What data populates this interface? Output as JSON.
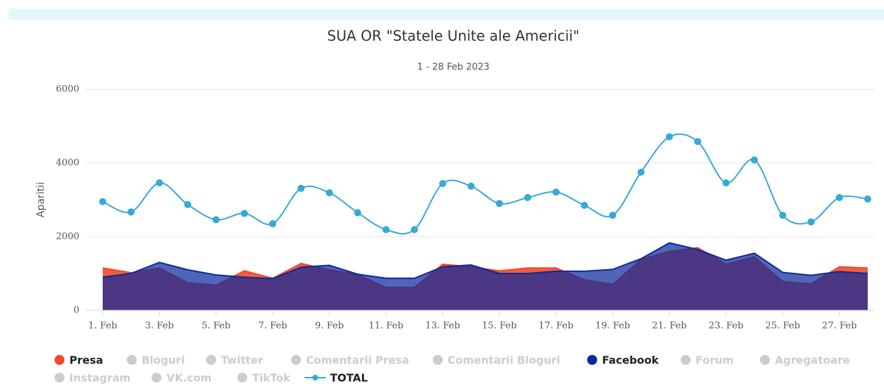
{
  "chart_data": {
    "type": "area",
    "title": "SUA OR \"Statele Unite ale Americii\"",
    "subtitle": "1 - 28 Feb 2023",
    "y_label": "Aparitii",
    "ylim": [
      0,
      6000
    ],
    "yticks": [
      0,
      2000,
      4000,
      6000
    ],
    "grid": true,
    "categories": [
      "1. Feb",
      null,
      "3. Feb",
      null,
      "5. Feb",
      null,
      "7. Feb",
      null,
      "9. Feb",
      null,
      "11. Feb",
      null,
      "13. Feb",
      null,
      "15. Feb",
      null,
      "17. Feb",
      null,
      "19. Feb",
      null,
      "21. Feb",
      null,
      "23. Feb",
      null,
      "25. Feb",
      null,
      "27. Feb",
      null
    ],
    "series": [
      {
        "name": "Presa",
        "type": "area",
        "visible": true,
        "color": "#ef4a2c",
        "values": [
          1150,
          1020,
          1150,
          750,
          680,
          1070,
          870,
          1270,
          1100,
          970,
          620,
          620,
          1250,
          1180,
          1070,
          1150,
          1150,
          830,
          700,
          1380,
          1600,
          1700,
          1250,
          1450,
          780,
          720,
          1180,
          1150
        ]
      },
      {
        "name": "Bloguri",
        "visible": false
      },
      {
        "name": "Twitter",
        "visible": false
      },
      {
        "name": "Comentarii Presa",
        "visible": false
      },
      {
        "name": "Comentarii Bloguri",
        "visible": false
      },
      {
        "name": "Facebook",
        "type": "area",
        "visible": true,
        "color": "#0b2a9c",
        "values": [
          900,
          1000,
          1300,
          1100,
          960,
          900,
          860,
          1170,
          1220,
          980,
          870,
          870,
          1180,
          1230,
          1000,
          1000,
          1060,
          1060,
          1110,
          1400,
          1830,
          1650,
          1360,
          1550,
          1030,
          950,
          1050,
          1000
        ]
      },
      {
        "name": "Forum",
        "visible": false
      },
      {
        "name": "Agregatoare",
        "visible": false
      },
      {
        "name": "Instagram",
        "visible": false
      },
      {
        "name": "VK.com",
        "visible": false
      },
      {
        "name": "TikTok",
        "visible": false
      },
      {
        "name": "TOTAL",
        "type": "spline",
        "visible": true,
        "color": "#35a9d8",
        "values": [
          2950,
          2670,
          3460,
          2870,
          2460,
          2630,
          2350,
          3310,
          3190,
          2650,
          2190,
          2190,
          3440,
          3370,
          2900,
          3060,
          3210,
          2850,
          2580,
          3750,
          4710,
          4580,
          3460,
          4080,
          2580,
          2400,
          3060,
          3020
        ]
      }
    ]
  }
}
